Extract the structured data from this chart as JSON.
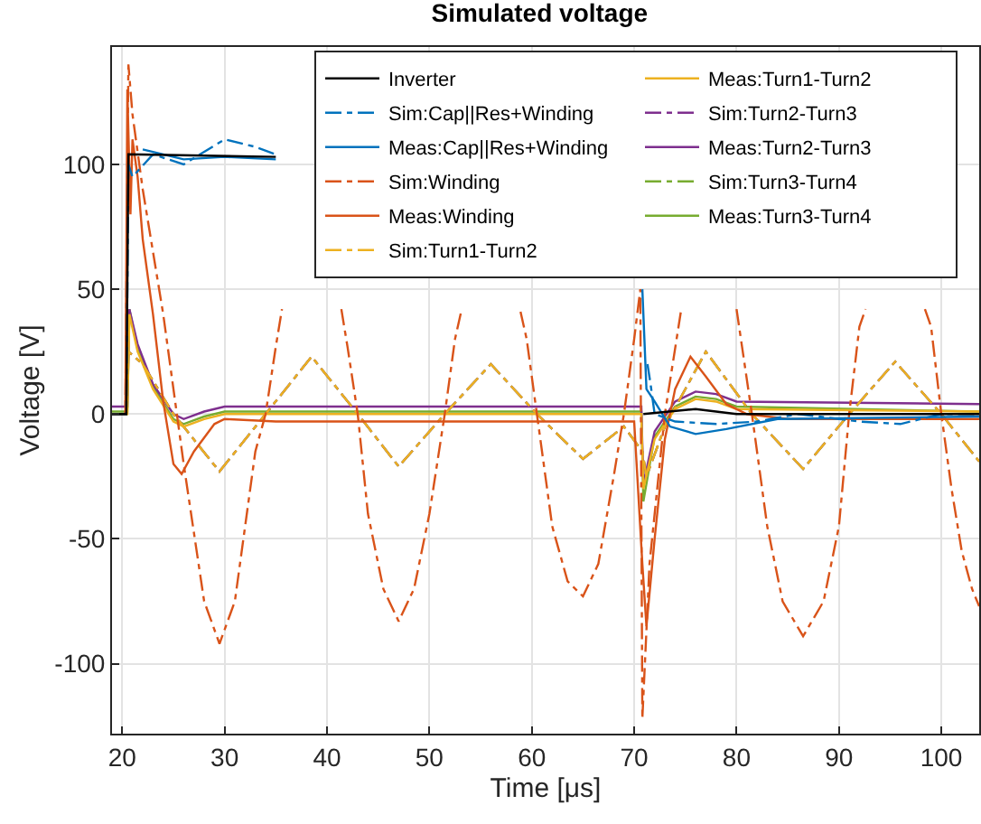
{
  "chart_data": {
    "type": "line",
    "title": "Simulated voltage",
    "xlabel": "Time [μs]",
    "ylabel": "Voltage [V]",
    "xlim": [
      19,
      103.7
    ],
    "ylim": [
      -128,
      147
    ],
    "xticks": [
      20,
      30,
      40,
      50,
      60,
      70,
      80,
      90,
      100
    ],
    "yticks": [
      -100,
      -50,
      0,
      50,
      100
    ],
    "grid": true,
    "legend": "top right",
    "marker": "none",
    "series": [
      {
        "name": "Inverter",
        "color": "#000000",
        "line_style": "solid",
        "x": [
          19,
          20.4,
          20.6,
          35,
          50,
          70.9,
          76,
          80,
          103.7
        ],
        "values": [
          0,
          0,
          104,
          103,
          null,
          0,
          2,
          0,
          0
        ]
      },
      {
        "name": "Sim:Cap||Res+Winding",
        "color": "#0072bd",
        "line_style": "dashdot",
        "x": [
          19,
          20.4,
          20.6,
          21,
          23,
          26,
          30,
          33,
          35,
          50,
          71.3,
          71.6,
          72,
          74,
          78,
          82,
          86,
          92,
          96,
          100,
          103.7
        ],
        "values": [
          0,
          0,
          100,
          95,
          104,
          100,
          110,
          107,
          104,
          null,
          20,
          12,
          0,
          -3,
          -4,
          -3,
          0,
          -3,
          -4,
          0,
          0
        ]
      },
      {
        "name": "Meas:Cap||Res+Winding",
        "color": "#0072bd",
        "line_style": "solid",
        "x": [
          22,
          26,
          30,
          35,
          50,
          70.8,
          71.2,
          72,
          73.5,
          76,
          79,
          84,
          103.7
        ],
        "values": [
          106,
          102,
          103,
          102,
          null,
          50,
          10,
          5,
          -5,
          -8,
          -6,
          -2,
          -1
        ]
      },
      {
        "name": "Sim:Winding",
        "color": "#d95319",
        "line_style": "dashdot",
        "x": [
          19,
          20.3,
          20.6,
          21,
          22,
          24,
          26,
          28,
          29.5,
          31,
          33,
          34,
          35,
          35.6,
          38.5,
          41.4,
          42,
          43,
          44,
          45.5,
          47,
          48.5,
          50,
          51.5,
          52.5,
          53.1,
          56,
          58.9,
          59.5,
          60.5,
          62,
          63.5,
          65,
          66.5,
          68,
          69,
          70,
          70.6,
          70.8,
          71.5,
          73,
          74.6,
          77,
          80,
          81.5,
          83,
          84.5,
          86.5,
          88.5,
          90,
          91,
          92,
          92.6,
          95.5,
          98.4,
          99,
          100,
          101,
          102,
          103,
          103.7
        ],
        "values": [
          0,
          0,
          140,
          120,
          90,
          40,
          -20,
          -75,
          -92,
          -75,
          -15,
          0,
          27,
          42,
          null,
          42,
          27,
          0,
          -40,
          -70,
          -83,
          -70,
          -40,
          0,
          30,
          41,
          null,
          41,
          30,
          0,
          -45,
          -67,
          -73,
          -60,
          -25,
          0,
          30,
          50,
          -122,
          -60,
          0,
          42,
          null,
          42,
          0,
          -45,
          -75,
          -89,
          -75,
          -45,
          0,
          35,
          42,
          null,
          42,
          35,
          0,
          -30,
          -55,
          -70,
          -77
        ]
      },
      {
        "name": "Meas:Winding",
        "color": "#d95319",
        "line_style": "solid",
        "x": [
          19,
          20.3,
          20.5,
          20.8,
          21,
          21.5,
          22,
          23,
          24,
          25,
          25.8,
          27,
          29,
          30,
          35,
          70,
          70.8,
          71.2,
          72,
          73,
          74,
          75.5,
          77,
          79,
          81,
          85,
          103.7
        ],
        "values": [
          0,
          0,
          130,
          80,
          110,
          95,
          70,
          40,
          5,
          -20,
          -24,
          -15,
          -4,
          -2,
          -3,
          -3,
          -60,
          -85,
          -50,
          -10,
          10,
          23,
          15,
          4,
          0,
          -2,
          -2
        ]
      },
      {
        "name": "Sim:Turn1-Turn2",
        "color": "#edb120",
        "line_style": "dashdot",
        "x": [
          19,
          20.4,
          20.6,
          22,
          25,
          29.5,
          34,
          38.5,
          43,
          47,
          51.5,
          56,
          60.5,
          65,
          69,
          70.8,
          71.2,
          73,
          77,
          81.5,
          86.5,
          91,
          95.5,
          100,
          103.7
        ],
        "values": [
          0,
          0,
          25,
          20,
          0,
          -23,
          0,
          23,
          0,
          -21,
          0,
          20,
          0,
          -18,
          -5,
          -15,
          -25,
          -5,
          25,
          0,
          -22,
          0,
          21,
          0,
          -19
        ]
      },
      {
        "name": "Meas:Turn1-Turn2",
        "color": "#edb120",
        "line_style": "solid",
        "x": [
          19,
          20.5,
          20.7,
          21.5,
          23,
          25,
          26,
          28,
          30,
          70.7,
          70.9,
          72,
          74,
          76,
          78,
          80,
          103.7
        ],
        "values": [
          0,
          0,
          40,
          25,
          10,
          -3,
          -5,
          -2,
          0,
          0,
          -30,
          -10,
          2,
          6,
          5,
          2,
          1
        ]
      },
      {
        "name": "Sim:Turn2-Turn3",
        "color": "#7e2f8e",
        "line_style": "dashdot",
        "x": [
          19,
          20.4,
          20.6,
          22,
          25,
          29.5,
          34,
          38.5,
          43,
          47,
          51.5,
          56,
          60.5,
          65,
          69,
          70.8,
          71.2,
          73,
          77,
          81.5,
          86.5,
          91,
          95.5,
          100,
          103.7
        ],
        "values": [
          0,
          0,
          25,
          20,
          0,
          -23,
          0,
          23,
          0,
          -21,
          0,
          20,
          0,
          -18,
          -5,
          -15,
          -25,
          -5,
          25,
          0,
          -22,
          0,
          21,
          0,
          -19
        ]
      },
      {
        "name": "Meas:Turn2-Turn3",
        "color": "#7e2f8e",
        "line_style": "solid",
        "x": [
          19,
          20.5,
          20.7,
          21.5,
          23,
          25,
          26,
          28,
          30,
          70.7,
          70.9,
          72,
          74,
          76,
          78,
          80,
          103.7
        ],
        "values": [
          3,
          3,
          42,
          28,
          12,
          0,
          -2,
          1,
          3,
          3,
          -28,
          -7,
          5,
          9,
          8,
          5,
          4
        ]
      },
      {
        "name": "Sim:Turn3-Turn4",
        "color": "#77ac30",
        "line_style": "dashdot",
        "x": [
          19,
          20.4,
          20.6,
          22,
          25,
          29.5,
          34,
          38.5,
          43,
          47,
          51.5,
          56,
          60.5,
          65,
          69,
          70.8,
          71.2,
          73,
          77,
          81.5,
          86.5,
          91,
          95.5,
          100,
          103.7
        ],
        "values": [
          0,
          0,
          25,
          20,
          0,
          -23,
          0,
          23,
          0,
          -21,
          0,
          20,
          0,
          -18,
          -5,
          -15,
          -25,
          -5,
          25,
          0,
          -22,
          0,
          21,
          0,
          -19
        ]
      },
      {
        "name": "Meas:Turn3-Turn4",
        "color": "#77ac30",
        "line_style": "solid",
        "x": [
          19,
          20.5,
          20.7,
          21.5,
          23,
          25,
          26,
          28,
          30,
          70.7,
          70.9,
          72,
          74,
          76,
          78,
          80,
          103.7
        ],
        "values": [
          1,
          1,
          42,
          26,
          11,
          -2,
          -4,
          -1,
          1,
          1,
          -35,
          -9,
          3,
          7,
          6,
          3,
          1
        ]
      }
    ]
  }
}
